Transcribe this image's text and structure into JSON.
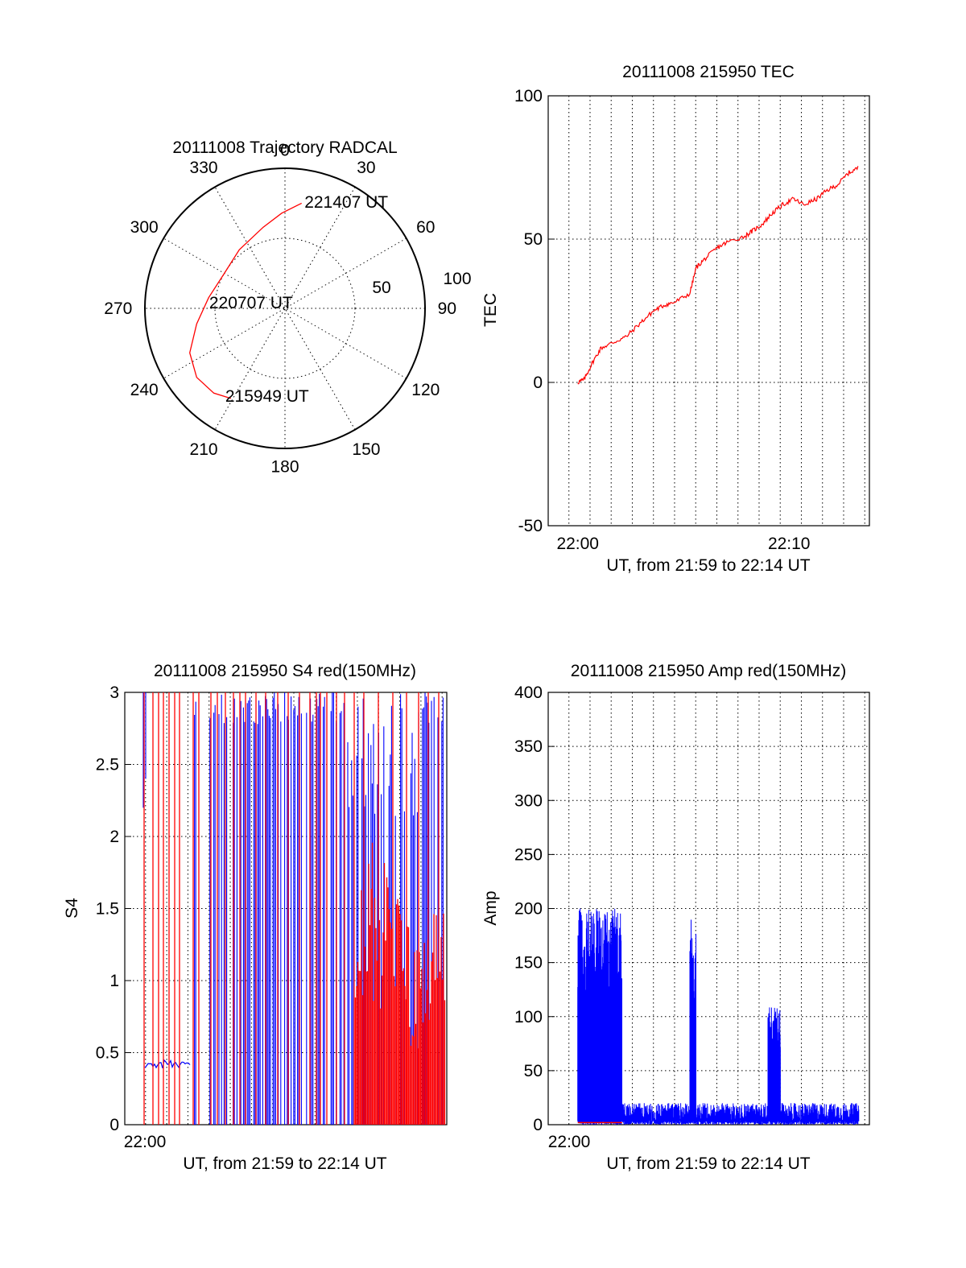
{
  "chart_data": [
    {
      "id": "trajectory",
      "type": "polar",
      "title": "20111008 Trajectory RADCAL",
      "angle_labels": [
        "0",
        "30",
        "60",
        "90",
        "120",
        "150",
        "180",
        "210",
        "240",
        "270",
        "300",
        "330"
      ],
      "radius_labels": [
        "50",
        "100"
      ],
      "rlim": [
        0,
        100
      ],
      "series": [
        {
          "color": "#ff0000",
          "points": [
            {
              "az": 211,
              "r": 75
            },
            {
              "az": 220,
              "r": 79
            },
            {
              "az": 232,
              "r": 80
            },
            {
              "az": 245,
              "r": 75
            },
            {
              "az": 260,
              "r": 64
            },
            {
              "az": 278,
              "r": 55
            },
            {
              "az": 300,
              "r": 50
            },
            {
              "az": 322,
              "r": 53
            },
            {
              "az": 345,
              "r": 60
            },
            {
              "az": 358,
              "r": 68
            },
            {
              "az": 9,
              "r": 76
            }
          ]
        }
      ],
      "annotations": [
        {
          "text": "221407 UT",
          "az": 12,
          "r": 78
        },
        {
          "text": "220707 UT",
          "az": 275,
          "r": 52
        },
        {
          "text": "215949 UT",
          "az": 213,
          "r": 74
        }
      ]
    },
    {
      "id": "tec",
      "type": "line",
      "title": "20111008 215950 TEC",
      "ylabel": "TEC",
      "xlabel": "UT, from 21:59 to 22:14 UT",
      "x_ticks": [
        "22:00",
        "22:10"
      ],
      "y_ticks": [
        "-50",
        "0",
        "50",
        "100"
      ],
      "xlim_minutes": [
        21.98,
        36.3
      ],
      "ylim": [
        -50,
        100
      ],
      "grid": true,
      "series": [
        {
          "color": "#ff0000",
          "points": [
            [
              23.0,
              0
            ],
            [
              23.3,
              1
            ],
            [
              23.7,
              7
            ],
            [
              24.1,
              12
            ],
            [
              24.7,
              14
            ],
            [
              25.3,
              16
            ],
            [
              26.0,
              21
            ],
            [
              26.6,
              25
            ],
            [
              27.1,
              27
            ],
            [
              27.6,
              28
            ],
            [
              28.3,
              31
            ],
            [
              28.6,
              40
            ],
            [
              29.0,
              43
            ],
            [
              29.6,
              47
            ],
            [
              30.1,
              49
            ],
            [
              30.9,
              51
            ],
            [
              31.3,
              53
            ],
            [
              31.7,
              55
            ],
            [
              32.2,
              59
            ],
            [
              32.7,
              62
            ],
            [
              33.2,
              64
            ],
            [
              33.7,
              62
            ],
            [
              34.3,
              64
            ],
            [
              34.8,
              67
            ],
            [
              35.3,
              69
            ],
            [
              35.8,
              73
            ],
            [
              36.3,
              75
            ]
          ]
        }
      ]
    },
    {
      "id": "s4",
      "type": "line",
      "title": "20111008 215950 S4 red(150MHz)",
      "ylabel": "S4",
      "xlabel": "UT, from 21:59 to 22:14 UT",
      "x_ticks": [
        "22:00"
      ],
      "y_ticks": [
        "0",
        "0.5",
        "1",
        "1.5",
        "2",
        "2.5",
        "3"
      ],
      "ylim": [
        0,
        3
      ],
      "grid": true,
      "series": [
        {
          "color": "#0000ff",
          "description": "S4 blue trace",
          "baseline": [
            [
              21.6,
              0.43
            ],
            [
              22.5,
              0.42
            ],
            [
              23.4,
              0.4
            ]
          ]
        },
        {
          "color": "#ff0000",
          "description": "S4 red trace",
          "baseline": [
            [
              32.0,
              0.9
            ],
            [
              34.0,
              1.1
            ],
            [
              35.0,
              0.8
            ]
          ]
        }
      ]
    },
    {
      "id": "amp",
      "type": "line",
      "title": "20111008 215950 Amp red(150MHz)",
      "ylabel": "Amp",
      "xlabel": "UT, from 21:59 to 22:14 UT",
      "x_ticks": [
        "22:00"
      ],
      "y_ticks": [
        "0",
        "50",
        "100",
        "150",
        "200",
        "250",
        "300",
        "350",
        "400"
      ],
      "ylim": [
        0,
        400
      ],
      "grid": true,
      "series": [
        {
          "color": "#0000ff",
          "bursts": [
            {
              "from": 23.0,
              "to": 25.1,
              "peak": 200
            },
            {
              "from": 28.3,
              "to": 28.6,
              "peak": 190
            },
            {
              "from": 32.0,
              "to": 32.6,
              "peak": 110
            }
          ],
          "background_max": 30
        },
        {
          "color": "#ff0000",
          "level": 2
        }
      ]
    }
  ]
}
